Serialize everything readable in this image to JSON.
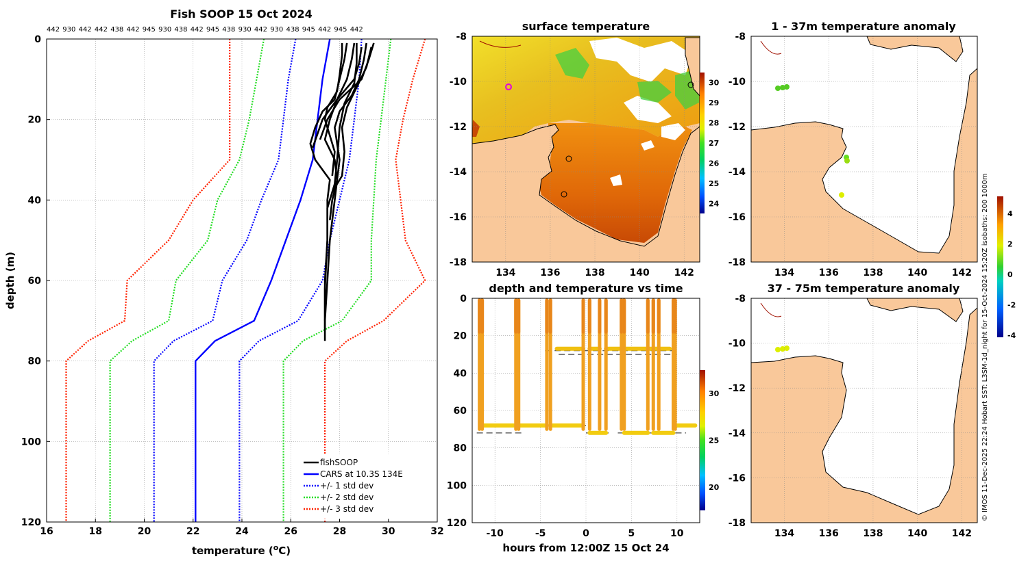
{
  "chart_data": [
    {
      "id": "profile",
      "type": "line",
      "title": "Fish SOOP 15 Oct 2024",
      "xlabel": "temperature (",
      "xlabel_unit": "o",
      "xlabel_end": "C)",
      "ylabel": "depth (m)",
      "xlim": [
        16,
        32
      ],
      "ylim": [
        0,
        120
      ],
      "xticks": [
        "16",
        "18",
        "20",
        "22",
        "24",
        "26",
        "28",
        "30",
        "32"
      ],
      "yticks": [
        "0",
        "20",
        "40",
        "60",
        "80",
        "100",
        "120"
      ],
      "top_labels": [
        "442",
        "930",
        "442",
        "442",
        "438",
        "442",
        "945",
        "930",
        "438",
        "442",
        "945",
        "438",
        "930",
        "442",
        "930",
        "438",
        "945",
        "442",
        "945",
        "442"
      ],
      "legend": [
        "fishSOOP",
        "CARS at 10.3S 134E",
        "+/- 1 std dev",
        "+/- 2 std dev",
        "+/- 3 std dev"
      ],
      "colors": {
        "fish": "#000000",
        "cars": "#0000ff",
        "std1": "#0000ff",
        "std2": "#22dd22",
        "std3": "#ff2200"
      },
      "cars_depth": [
        0,
        10,
        20,
        30,
        40,
        50,
        60,
        70,
        75,
        80,
        120
      ],
      "cars_mean": [
        27.6,
        27.3,
        27.1,
        26.9,
        26.4,
        25.8,
        25.2,
        24.5,
        22.9,
        22.1,
        22.1
      ],
      "std1_lo": [
        26.2,
        25.9,
        25.7,
        25.5,
        24.8,
        24.2,
        23.2,
        22.8,
        21.2,
        20.4,
        20.4
      ],
      "std1_hi": [
        28.9,
        28.8,
        28.6,
        28.4,
        28.0,
        27.6,
        27.3,
        26.3,
        24.7,
        23.9,
        23.9
      ],
      "std2_lo": [
        24.9,
        24.6,
        24.3,
        23.9,
        23.0,
        22.6,
        21.3,
        21.0,
        19.5,
        18.6,
        18.6
      ],
      "std2_hi": [
        30.1,
        29.9,
        29.7,
        29.5,
        29.4,
        29.3,
        29.3,
        28.1,
        26.5,
        25.7,
        25.7
      ],
      "std3_lo": [
        23.5,
        23.5,
        23.5,
        23.5,
        22.0,
        21.0,
        19.3,
        19.2,
        17.7,
        16.8,
        16.8
      ],
      "std3_hi": [
        31.5,
        31.0,
        30.6,
        30.3,
        30.5,
        30.7,
        31.5,
        29.8,
        28.3,
        27.4,
        27.4
      ],
      "fish_profiles": [
        {
          "depth": [
            1,
            5,
            10,
            15,
            18,
            22,
            26,
            30,
            35,
            40,
            50,
            60,
            70,
            75
          ],
          "temp": [
            28.3,
            28.2,
            28.0,
            27.8,
            27.3,
            27.0,
            26.8,
            27.0,
            27.6,
            27.5,
            27.5,
            27.4,
            27.4,
            27.4
          ]
        },
        {
          "depth": [
            1,
            5,
            10,
            15,
            20,
            25,
            30,
            35,
            40,
            50,
            60,
            70
          ],
          "temp": [
            28.6,
            28.5,
            28.3,
            27.9,
            27.6,
            27.4,
            27.8,
            27.9,
            27.8,
            27.6,
            27.5,
            27.4
          ]
        },
        {
          "depth": [
            1,
            5,
            10,
            14,
            18,
            22,
            26,
            30,
            35,
            40,
            45
          ],
          "temp": [
            29.1,
            29.0,
            28.8,
            28.5,
            28.0,
            27.8,
            27.9,
            28.0,
            27.9,
            27.7,
            27.6
          ]
        },
        {
          "depth": [
            1,
            5,
            10,
            15,
            20,
            25
          ],
          "temp": [
            29.4,
            29.2,
            28.9,
            28.0,
            27.5,
            27.2
          ]
        },
        {
          "depth": [
            2,
            6,
            10,
            15,
            20,
            27
          ],
          "temp": [
            28.9,
            28.8,
            28.6,
            27.9,
            27.3,
            26.9
          ]
        },
        {
          "depth": [
            1,
            6,
            11,
            16,
            22,
            30,
            36,
            42,
            50,
            62,
            72
          ],
          "temp": [
            28.7,
            28.7,
            28.6,
            28.2,
            28.0,
            27.9,
            27.8,
            27.5,
            27.5,
            27.4,
            27.4
          ]
        },
        {
          "depth": [
            2,
            7,
            12,
            17,
            22,
            28,
            34,
            38
          ],
          "temp": [
            29.3,
            29.1,
            28.7,
            28.3,
            28.1,
            28.2,
            28.1,
            27.7
          ]
        },
        {
          "depth": [
            1,
            4,
            9,
            13,
            17,
            20,
            24,
            28,
            34
          ],
          "temp": [
            28.1,
            28.1,
            28.0,
            27.9,
            27.5,
            27.4,
            27.6,
            27.8,
            27.7
          ]
        }
      ]
    },
    {
      "id": "sst",
      "type": "heatmap",
      "title": "surface temperature",
      "xlim": [
        132.5,
        142.7
      ],
      "ylim": [
        -18,
        -8
      ],
      "xticks": [
        "134",
        "136",
        "138",
        "140",
        "142"
      ],
      "yticks": [
        "-8",
        "-10",
        "-12",
        "-14",
        "-16",
        "-18"
      ],
      "colorbar_ticks": [
        "30",
        "29",
        "28",
        "27",
        "26",
        "25",
        "24"
      ]
    },
    {
      "id": "time",
      "type": "scatter",
      "title": "depth and temperature vs time",
      "xlabel": "hours from 12:00Z 15 Oct 24",
      "xlim": [
        -12.5,
        12.5
      ],
      "ylim": [
        0,
        120
      ],
      "xticks": [
        "-10",
        "-5",
        "0",
        "5",
        "10"
      ],
      "yticks": [
        "0",
        "20",
        "40",
        "60",
        "80",
        "100",
        "120"
      ],
      "colorbar_ticks": [
        "30",
        "25",
        "20"
      ],
      "dives": [
        -11.7,
        -11.4,
        -7.7,
        -7.4,
        -4.3,
        -3.9,
        -0.3,
        0.4,
        1.5,
        2.2,
        3.9,
        4.2,
        6.8,
        7.4,
        8.0,
        9.6,
        9.8
      ],
      "shallow_deploys": [
        [
          -3.2,
          -0.3,
          27
        ],
        [
          0.4,
          1.5,
          27
        ],
        [
          2.2,
          3.9,
          27
        ],
        [
          4.2,
          8.0,
          27
        ],
        [
          8.0,
          9.2,
          27
        ]
      ],
      "deep_deploys": [
        [
          -11.4,
          -7.7,
          68
        ],
        [
          -7.4,
          -4.3,
          68
        ],
        [
          -3.9,
          -0.3,
          68
        ],
        [
          0.4,
          2.2,
          72
        ],
        [
          4.2,
          6.8,
          72
        ],
        [
          7.4,
          9.6,
          72
        ],
        [
          9.8,
          12.0,
          68
        ]
      ],
      "dashes": [
        [
          -4.5,
          9.5,
          28
        ],
        [
          -3.0,
          10.0,
          30
        ],
        [
          -12,
          -7,
          72
        ],
        [
          -7,
          0,
          68
        ],
        [
          0,
          2.5,
          72
        ],
        [
          3.5,
          11,
          72
        ]
      ]
    },
    {
      "id": "anom1",
      "type": "heatmap",
      "title": "1 - 37m temperature anomaly",
      "xlim": [
        132.5,
        142.7
      ],
      "ylim": [
        -18,
        -8
      ],
      "xticks": [
        "134",
        "136",
        "138",
        "140",
        "142"
      ],
      "yticks": [
        "-8",
        "-10",
        "-12",
        "-14",
        "-16",
        "-18"
      ]
    },
    {
      "id": "anom2",
      "type": "heatmap",
      "title": "37 - 75m temperature anomaly",
      "xlim": [
        132.5,
        142.7
      ],
      "ylim": [
        -18,
        -8
      ],
      "xticks": [
        "134",
        "136",
        "138",
        "140",
        "142"
      ],
      "yticks": [
        "-8",
        "-10",
        "-12",
        "-14",
        "-16",
        "-18"
      ],
      "colorbar_ticks": [
        "4",
        "2",
        "0",
        "-2",
        "-4"
      ]
    }
  ],
  "credit": "© IMOS 11-Dec-2025 22:24 Hobart SST: L3SM-1d_night for 15-Oct-2024 15:20Z isobaths: 200  1000m"
}
